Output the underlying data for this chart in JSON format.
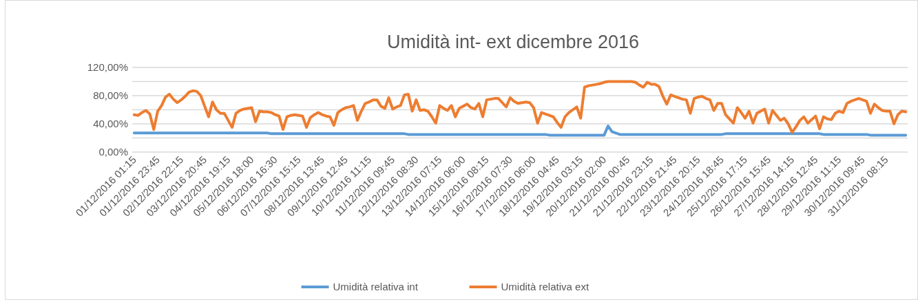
{
  "chart_data": {
    "type": "line",
    "title": "Umidità int- ext dicembre 2016",
    "categories": [
      "01/12/2016 01:15",
      null,
      null,
      null,
      null,
      null,
      "01/12/2016 23:45",
      null,
      null,
      null,
      null,
      null,
      "02/12/2016 22:15",
      null,
      null,
      null,
      null,
      null,
      "03/12/2016 20:45",
      null,
      null,
      null,
      null,
      null,
      "04/12/2016 19:15",
      null,
      null,
      null,
      null,
      null,
      "05/12/2016 18:00",
      null,
      null,
      null,
      null,
      null,
      "06/12/2016 16:30",
      null,
      null,
      null,
      null,
      null,
      "07/12/2016 15:15",
      null,
      null,
      null,
      null,
      null,
      "08/12/2016 13:45",
      null,
      null,
      null,
      null,
      null,
      "09/12/2016 12:45",
      null,
      null,
      null,
      null,
      null,
      "10/12/2016 11:15",
      null,
      null,
      null,
      null,
      null,
      "11/12/2016 09:45",
      null,
      null,
      null,
      null,
      null,
      "12/12/2016 08:30",
      null,
      null,
      null,
      null,
      null,
      "13/12/2016 07:15",
      null,
      null,
      null,
      null,
      null,
      "14/12/2016 06:00",
      null,
      null,
      null,
      null,
      null,
      "15/12/2016 08:15",
      null,
      null,
      null,
      null,
      null,
      "16/12/2016 07:30",
      null,
      null,
      null,
      null,
      null,
      "17/12/2016 06:00",
      null,
      null,
      null,
      null,
      null,
      "18/12/2016 04:45",
      null,
      null,
      null,
      null,
      null,
      "19/12/2016 03:15",
      null,
      null,
      null,
      null,
      null,
      "20/12/2016 02:00",
      null,
      null,
      null,
      null,
      null,
      "21/12/2016 00:45",
      null,
      null,
      null,
      null,
      null,
      "21/12/2016 23:15",
      null,
      null,
      null,
      null,
      null,
      "22/12/2016 21:45",
      null,
      null,
      null,
      null,
      null,
      "23/12/2016 20:15",
      null,
      null,
      null,
      null,
      null,
      "24/12/2016 18:45",
      null,
      null,
      null,
      null,
      null,
      "25/12/2016 17:15",
      null,
      null,
      null,
      null,
      null,
      "26/12/2016 15:45",
      null,
      null,
      null,
      null,
      null,
      "27/12/2016 14:15",
      null,
      null,
      null,
      null,
      null,
      "28/12/2016 12:45",
      null,
      null,
      null,
      null,
      null,
      "29/12/2016 11:15",
      null,
      null,
      null,
      null,
      null,
      "30/12/2016 09:45",
      null,
      null,
      null,
      null,
      null,
      "31/12/2016 08:15",
      null,
      null,
      null,
      null,
      null
    ],
    "series": [
      {
        "name": "Umidità relativa int",
        "color": "#5b9bd5",
        "values": [
          27,
          27,
          27,
          27,
          27,
          27,
          27,
          27,
          27,
          27,
          27,
          27,
          27,
          27,
          27,
          27,
          27,
          27,
          27,
          27,
          27,
          27,
          27,
          27,
          27,
          27,
          27,
          27,
          27,
          27,
          27,
          27,
          27,
          27,
          27,
          26,
          26,
          26,
          26,
          26,
          26,
          26,
          26,
          26,
          26,
          26,
          26,
          26,
          26,
          26,
          26,
          26,
          26,
          26,
          26,
          26,
          26,
          26,
          26,
          26,
          26,
          26,
          26,
          26,
          26,
          26,
          26,
          26,
          26,
          26,
          25,
          25,
          25,
          25,
          25,
          25,
          25,
          25,
          25,
          25,
          25,
          25,
          25,
          25,
          25,
          25,
          25,
          25,
          25,
          25,
          25,
          25,
          25,
          25,
          25,
          25,
          25,
          25,
          25,
          25,
          25,
          25,
          25,
          25,
          25,
          25,
          24,
          24,
          24,
          24,
          24,
          24,
          24,
          24,
          24,
          24,
          24,
          24,
          24,
          24,
          24,
          37,
          29,
          27,
          25,
          25,
          25,
          25,
          25,
          25,
          25,
          25,
          25,
          25,
          25,
          25,
          25,
          25,
          25,
          25,
          25,
          25,
          25,
          25,
          25,
          25,
          25,
          25,
          25,
          25,
          25,
          26,
          26,
          26,
          26,
          26,
          26,
          26,
          26,
          26,
          26,
          26,
          26,
          26,
          26,
          26,
          26,
          26,
          26,
          26,
          26,
          26,
          26,
          26,
          26,
          26,
          25,
          25,
          25,
          25,
          25,
          25,
          25,
          25,
          25,
          25,
          25,
          25,
          24,
          24,
          24,
          24,
          24,
          24,
          24,
          24,
          24,
          24
        ]
      },
      {
        "name": "Umidità relativa ext",
        "color": "#ed7d31",
        "values": [
          53,
          52,
          56,
          59,
          54,
          32,
          58,
          66,
          78,
          82,
          75,
          70,
          74,
          79,
          85,
          87,
          86,
          80,
          65,
          50,
          71,
          60,
          55,
          55,
          45,
          35,
          55,
          59,
          61,
          62,
          63,
          43,
          58,
          57,
          57,
          56,
          53,
          51,
          32,
          50,
          52,
          53,
          52,
          51,
          35,
          49,
          53,
          56,
          53,
          51,
          50,
          38,
          56,
          60,
          63,
          64,
          66,
          45,
          58,
          69,
          71,
          74,
          74,
          65,
          62,
          77,
          61,
          64,
          66,
          81,
          82,
          58,
          74,
          59,
          60,
          58,
          50,
          41,
          66,
          62,
          59,
          66,
          50,
          62,
          65,
          68,
          63,
          61,
          69,
          50,
          74,
          75,
          76,
          76,
          70,
          64,
          77,
          72,
          69,
          70,
          71,
          70,
          63,
          41,
          56,
          54,
          52,
          50,
          42,
          35,
          50,
          56,
          60,
          64,
          48,
          92,
          94,
          95,
          96,
          97,
          99,
          100,
          100,
          100,
          100,
          100,
          100,
          100,
          99,
          95,
          92,
          99,
          96,
          96,
          93,
          79,
          68,
          81,
          79,
          77,
          75,
          74,
          55,
          76,
          78,
          79,
          76,
          74,
          59,
          69,
          69,
          53,
          47,
          41,
          63,
          56,
          48,
          58,
          41,
          55,
          58,
          61,
          41,
          59,
          52,
          45,
          48,
          40,
          28,
          36,
          45,
          50,
          41,
          46,
          51,
          33,
          50,
          47,
          46,
          55,
          58,
          56,
          69,
          72,
          74,
          76,
          74,
          72,
          55,
          68,
          63,
          59,
          58,
          58,
          40,
          53,
          58,
          57
        ]
      }
    ],
    "ylim": [
      0,
      120
    ],
    "yticks": [
      {
        "value": 0,
        "label": "0,00%"
      },
      {
        "value": 20,
        "label": null
      },
      {
        "value": 40,
        "label": "40,00%"
      },
      {
        "value": 60,
        "label": null
      },
      {
        "value": 80,
        "label": "80,00%"
      },
      {
        "value": 100,
        "label": null
      },
      {
        "value": 120,
        "label": "120,00%"
      }
    ],
    "grid": true,
    "legend": "bottom",
    "line_style": "solid",
    "marker": "none"
  }
}
